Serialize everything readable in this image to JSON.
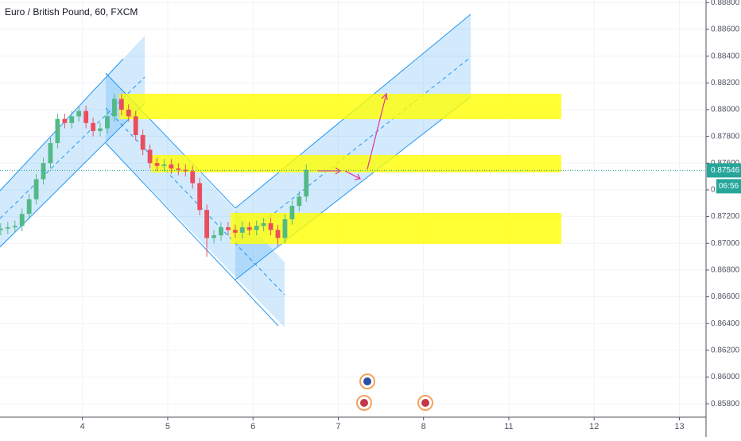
{
  "chart_data": {
    "type": "candlestick",
    "title": "Euro / British Pound, 60, FXCM",
    "x": [
      1,
      3,
      5,
      7,
      9,
      11,
      13,
      15,
      17,
      19,
      21,
      23,
      25,
      27,
      29,
      31,
      33,
      35,
      37,
      39,
      41,
      43,
      45,
      47,
      49,
      51,
      53,
      55,
      57,
      59,
      61,
      63,
      65,
      67,
      69,
      71,
      73,
      75,
      77,
      79,
      81,
      83,
      85,
      87
    ],
    "open": [
      0.871,
      0.8711,
      0.8712,
      0.8713,
      0.8722,
      0.8733,
      0.8748,
      0.876,
      0.8775,
      0.8793,
      0.879,
      0.8795,
      0.8799,
      0.879,
      0.8784,
      0.8786,
      0.8795,
      0.8808,
      0.88,
      0.8795,
      0.8781,
      0.877,
      0.876,
      0.8758,
      0.8759,
      0.8756,
      0.8755,
      0.8754,
      0.8745,
      0.8725,
      0.8704,
      0.8706,
      0.8712,
      0.871,
      0.8708,
      0.8712,
      0.871,
      0.8713,
      0.8715,
      0.871,
      0.8704,
      0.8718,
      0.8728,
      0.8735
    ],
    "high": [
      0.8715,
      0.8716,
      0.8717,
      0.8726,
      0.8737,
      0.8752,
      0.8764,
      0.8779,
      0.8797,
      0.8797,
      0.8799,
      0.8803,
      0.8803,
      0.8794,
      0.879,
      0.8799,
      0.8812,
      0.8812,
      0.8804,
      0.8799,
      0.8785,
      0.8774,
      0.8764,
      0.8763,
      0.8763,
      0.876,
      0.8759,
      0.8758,
      0.8749,
      0.8729,
      0.871,
      0.8716,
      0.8716,
      0.8714,
      0.8716,
      0.8716,
      0.8717,
      0.8719,
      0.8719,
      0.8714,
      0.8722,
      0.8732,
      0.8739,
      0.8759
    ],
    "low": [
      0.8706,
      0.8707,
      0.8708,
      0.8709,
      0.8718,
      0.8729,
      0.8744,
      0.8756,
      0.8771,
      0.8786,
      0.8786,
      0.8791,
      0.8786,
      0.878,
      0.878,
      0.8782,
      0.8791,
      0.8796,
      0.8791,
      0.8777,
      0.8766,
      0.8756,
      0.8754,
      0.8754,
      0.8752,
      0.8751,
      0.875,
      0.8741,
      0.8721,
      0.869,
      0.87,
      0.8702,
      0.8706,
      0.8704,
      0.8704,
      0.8706,
      0.8706,
      0.8709,
      0.8706,
      0.8698,
      0.87,
      0.8714,
      0.8724,
      0.8731
    ],
    "close": [
      0.8711,
      0.8712,
      0.8713,
      0.8722,
      0.8733,
      0.8748,
      0.876,
      0.8775,
      0.8793,
      0.879,
      0.8795,
      0.8799,
      0.879,
      0.8784,
      0.8786,
      0.8795,
      0.8808,
      0.88,
      0.8795,
      0.8781,
      0.877,
      0.876,
      0.8758,
      0.8759,
      0.8756,
      0.8755,
      0.8754,
      0.8745,
      0.8725,
      0.8704,
      0.8706,
      0.8712,
      0.871,
      0.8708,
      0.8712,
      0.871,
      0.8713,
      0.8715,
      0.871,
      0.8704,
      0.8718,
      0.8728,
      0.8735,
      0.8755
    ],
    "up_color": "#53b987",
    "down_color": "#eb4d5c",
    "xlim": [
      0.8,
      199.5
    ],
    "xticks": [
      {
        "value": 24,
        "label": "4"
      },
      {
        "value": 48,
        "label": "5"
      },
      {
        "value": 72,
        "label": "6"
      },
      {
        "value": 96,
        "label": "7"
      },
      {
        "value": 120,
        "label": "8"
      },
      {
        "value": 144,
        "label": "11"
      },
      {
        "value": 168,
        "label": "12"
      },
      {
        "value": 192,
        "label": "13"
      }
    ],
    "ylim": [
      0.857,
      0.8882
    ],
    "yticks": [
      {
        "value": 0.888,
        "label": "0.88800"
      },
      {
        "value": 0.886,
        "label": "0.88600"
      },
      {
        "value": 0.884,
        "label": "0.88400"
      },
      {
        "value": 0.882,
        "label": "0.88200"
      },
      {
        "value": 0.88,
        "label": "0.88000"
      },
      {
        "value": 0.878,
        "label": "0.87800"
      },
      {
        "value": 0.876,
        "label": "0.87600"
      },
      {
        "value": 0.874,
        "label": "0.87400"
      },
      {
        "value": 0.872,
        "label": "0.87200"
      },
      {
        "value": 0.87,
        "label": "0.87000"
      },
      {
        "value": 0.868,
        "label": "0.86800"
      },
      {
        "value": 0.866,
        "label": "0.86600"
      },
      {
        "value": 0.864,
        "label": "0.86400"
      },
      {
        "value": 0.862,
        "label": "0.86200"
      },
      {
        "value": 0.86,
        "label": "0.86000"
      },
      {
        "value": 0.858,
        "label": "0.85800"
      }
    ],
    "grid": true,
    "last_price": {
      "value": 0.87546,
      "label": "0.87546"
    },
    "countdown": "06:56"
  }
}
